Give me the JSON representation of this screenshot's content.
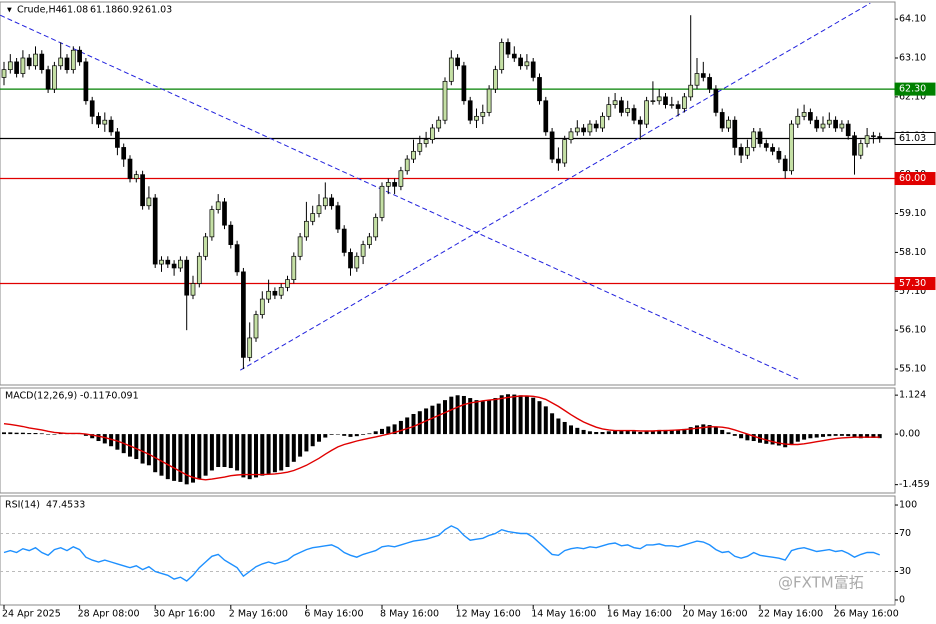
{
  "chart_data": {
    "type": "candlestick",
    "title": "Crude,H4",
    "watermark": "@FXTM富拓",
    "bull_color": "#c5e0a5",
    "bear_color": "#000000",
    "open": [
      62.6,
      62.8,
      63.0,
      62.7,
      63.1,
      62.9,
      63.2,
      62.8,
      62.3,
      62.9,
      63.1,
      62.8,
      63.3,
      63.0,
      62.0,
      61.6,
      61.4,
      61.5,
      61.2,
      60.8,
      60.5,
      60.0,
      60.1,
      59.3,
      59.5,
      57.8,
      57.9,
      57.8,
      57.7,
      57.9,
      57.0,
      57.3,
      58.0,
      58.5,
      59.2,
      59.4,
      58.8,
      58.3,
      57.6,
      55.4,
      55.9,
      56.5,
      56.9,
      57.1,
      57.0,
      57.2,
      57.4,
      58.0,
      58.5,
      58.9,
      59.1,
      59.3,
      59.5,
      59.3,
      58.7,
      58.1,
      57.7,
      58.0,
      58.3,
      58.5,
      59.0,
      59.8,
      59.9,
      59.8,
      60.2,
      60.5,
      60.7,
      60.9,
      61.0,
      61.3,
      61.5,
      62.5,
      63.1,
      62.9,
      62.0,
      61.5,
      61.6,
      61.7,
      62.3,
      62.8,
      63.5,
      63.2,
      63.1,
      62.9,
      63.0,
      62.6,
      62.0,
      61.2,
      60.5,
      60.4,
      61.0,
      61.2,
      61.3,
      61.2,
      61.4,
      61.3,
      61.6,
      61.9,
      62.0,
      61.7,
      61.8,
      61.5,
      61.4,
      62.0,
      62.0,
      62.1,
      61.9,
      61.9,
      61.8,
      62.1,
      62.4,
      62.7,
      62.6,
      62.3,
      61.7,
      61.3,
      61.5,
      60.8,
      60.6,
      60.8,
      61.2,
      60.9,
      60.8,
      60.7,
      60.5,
      60.2,
      61.4,
      61.6,
      61.7,
      61.5,
      61.3,
      61.4,
      61.5,
      61.3,
      61.4,
      61.1,
      60.6,
      60.9,
      61.1,
      61.08
    ],
    "high": [
      63.0,
      63.2,
      63.1,
      63.3,
      63.2,
      63.4,
      63.3,
      62.9,
      63.0,
      63.5,
      63.2,
      63.4,
      63.4,
      63.1,
      62.1,
      61.7,
      61.7,
      61.6,
      61.3,
      60.9,
      60.6,
      60.2,
      60.2,
      59.8,
      59.6,
      58.0,
      58.0,
      57.9,
      58.0,
      58.0,
      57.5,
      58.1,
      58.6,
      59.3,
      59.6,
      59.5,
      58.9,
      58.4,
      57.7,
      56.3,
      56.6,
      57.1,
      57.4,
      57.2,
      57.3,
      57.5,
      58.1,
      58.6,
      59.4,
      59.3,
      59.6,
      59.9,
      59.6,
      59.4,
      58.8,
      58.2,
      58.1,
      58.4,
      58.6,
      59.1,
      59.9,
      60.0,
      60.0,
      60.3,
      60.6,
      61.0,
      61.1,
      61.2,
      61.4,
      61.6,
      62.6,
      63.3,
      63.2,
      63.0,
      62.1,
      61.8,
      61.9,
      62.4,
      62.9,
      63.6,
      63.6,
      63.4,
      63.2,
      63.2,
      63.1,
      62.7,
      62.1,
      61.3,
      60.8,
      61.1,
      61.3,
      61.5,
      61.4,
      61.5,
      61.5,
      61.7,
      62.1,
      62.2,
      62.1,
      62.0,
      61.9,
      61.6,
      62.1,
      62.5,
      62.3,
      62.2,
      62.1,
      62.0,
      62.2,
      64.2,
      63.1,
      63.0,
      62.7,
      62.4,
      61.8,
      61.6,
      61.6,
      60.9,
      61.0,
      61.3,
      61.3,
      61.0,
      60.9,
      60.8,
      60.6,
      61.5,
      61.8,
      61.9,
      61.8,
      61.6,
      61.6,
      61.7,
      61.6,
      61.5,
      61.5,
      61.2,
      61.0,
      61.3,
      61.2,
      61.18
    ],
    "low": [
      62.4,
      62.7,
      62.6,
      62.6,
      62.8,
      62.8,
      62.7,
      62.2,
      62.2,
      62.8,
      62.7,
      62.7,
      62.9,
      61.9,
      61.4,
      61.3,
      61.2,
      61.1,
      60.6,
      60.3,
      59.9,
      59.9,
      59.2,
      59.2,
      57.7,
      57.6,
      57.7,
      57.5,
      57.6,
      56.1,
      56.9,
      57.2,
      57.9,
      58.4,
      59.1,
      58.7,
      58.2,
      57.5,
      55.1,
      55.3,
      55.8,
      56.4,
      56.8,
      56.9,
      56.9,
      57.1,
      57.3,
      57.9,
      58.4,
      58.8,
      59.0,
      59.2,
      59.2,
      58.6,
      58.0,
      57.5,
      57.6,
      57.8,
      58.2,
      58.4,
      58.9,
      59.6,
      59.6,
      59.7,
      60.1,
      60.4,
      60.6,
      60.8,
      60.9,
      61.2,
      61.4,
      62.4,
      62.8,
      61.9,
      61.4,
      61.3,
      61.4,
      61.6,
      62.2,
      62.7,
      63.1,
      63.0,
      62.8,
      62.8,
      62.5,
      61.9,
      61.1,
      60.4,
      60.2,
      60.3,
      60.9,
      61.1,
      61.1,
      61.1,
      61.2,
      61.2,
      61.5,
      61.8,
      61.6,
      61.6,
      61.4,
      61.0,
      61.3,
      61.9,
      61.9,
      61.8,
      61.8,
      61.6,
      61.7,
      62.0,
      62.3,
      62.5,
      62.2,
      61.6,
      61.2,
      61.2,
      60.6,
      60.4,
      60.5,
      60.7,
      60.8,
      60.7,
      60.6,
      60.4,
      60.0,
      60.1,
      61.3,
      61.5,
      61.4,
      61.2,
      61.2,
      61.3,
      61.2,
      61.2,
      61.0,
      60.1,
      60.5,
      60.8,
      60.9,
      60.92
    ],
    "close": [
      62.8,
      63.0,
      62.7,
      63.1,
      62.9,
      63.2,
      62.8,
      62.3,
      62.9,
      63.1,
      62.8,
      63.3,
      63.0,
      62.0,
      61.6,
      61.4,
      61.5,
      61.2,
      60.8,
      60.5,
      60.0,
      60.1,
      59.3,
      59.5,
      57.8,
      57.9,
      57.8,
      57.7,
      57.9,
      57.0,
      57.3,
      58.0,
      58.5,
      59.2,
      59.4,
      58.8,
      58.3,
      57.6,
      55.4,
      55.9,
      56.5,
      56.9,
      57.1,
      57.0,
      57.2,
      57.4,
      58.0,
      58.5,
      58.9,
      59.1,
      59.3,
      59.5,
      59.3,
      58.7,
      58.1,
      57.7,
      58.0,
      58.3,
      58.5,
      59.0,
      59.8,
      59.9,
      59.8,
      60.2,
      60.5,
      60.7,
      60.9,
      61.0,
      61.3,
      61.5,
      62.5,
      63.1,
      62.9,
      62.0,
      61.5,
      61.6,
      61.7,
      62.3,
      62.8,
      63.5,
      63.2,
      63.1,
      62.9,
      63.0,
      62.6,
      62.0,
      61.2,
      60.5,
      60.4,
      61.0,
      61.2,
      61.3,
      61.2,
      61.4,
      61.3,
      61.6,
      61.9,
      62.0,
      61.7,
      61.8,
      61.5,
      61.4,
      62.0,
      62.0,
      62.1,
      61.9,
      61.9,
      61.8,
      62.1,
      62.4,
      62.7,
      62.6,
      62.3,
      61.7,
      61.3,
      61.5,
      60.8,
      60.6,
      60.8,
      61.2,
      60.9,
      60.8,
      60.7,
      60.5,
      60.2,
      61.4,
      61.6,
      61.7,
      61.5,
      61.3,
      61.4,
      61.5,
      61.3,
      61.4,
      61.1,
      60.6,
      60.9,
      61.1,
      61.08,
      61.03
    ],
    "ylim": [
      54.69,
      64.54
    ],
    "yticks": [
      {
        "value": 55.1,
        "label": "55.10"
      },
      {
        "value": 56.1,
        "label": "56.10"
      },
      {
        "value": 57.1,
        "label": "57.10"
      },
      {
        "value": 58.1,
        "label": "58.10"
      },
      {
        "value": 59.1,
        "label": "59.10"
      },
      {
        "value": 60.1,
        "label": "60.10"
      },
      {
        "value": 61.1,
        "label": "61.10"
      },
      {
        "value": 62.1,
        "label": "62.10"
      },
      {
        "value": 63.1,
        "label": "63.10"
      },
      {
        "value": 64.1,
        "label": "64.10"
      }
    ],
    "levels": [
      {
        "value": 62.3,
        "label": "62.30",
        "color": "#008000"
      },
      {
        "value": 61.03,
        "label": "61.03",
        "color": "#000000"
      },
      {
        "value": 60.0,
        "label": "60.00",
        "color": "#e00000"
      },
      {
        "value": 57.3,
        "label": "57.30",
        "color": "#e00000"
      }
    ],
    "trendlines": [
      {
        "color": "#2222dd",
        "points": [
          [
            -0.6,
            64.2
          ],
          [
            126.3,
            54.82
          ]
        ]
      },
      {
        "color": "#2222dd",
        "points": [
          [
            37.5,
            55.07
          ],
          [
            137.5,
            64.51
          ]
        ]
      }
    ],
    "xticks": [
      {
        "value": 0,
        "label": "24 Apr 2025"
      },
      {
        "value": 12,
        "label": "28 Apr 08:00"
      },
      {
        "value": 24,
        "label": "30 Apr 16:00"
      },
      {
        "value": 36,
        "label": "2 May 16:00"
      },
      {
        "value": 48,
        "label": "6 May 16:00"
      },
      {
        "value": 60,
        "label": "8 May 16:00"
      },
      {
        "value": 72,
        "label": "12 May 16:00"
      },
      {
        "value": 84,
        "label": "14 May 16:00"
      },
      {
        "value": 96,
        "label": "16 May 16:00"
      },
      {
        "value": 108,
        "label": "20 May 16:00"
      },
      {
        "value": 120,
        "label": "22 May 16:00"
      },
      {
        "value": 132,
        "label": "26 May 16:00"
      }
    ],
    "macd": {
      "name": "MACD(12,26,9)",
      "hist_color": "#000000",
      "signal_color": "#e00000",
      "hist": [
        0.05,
        0.05,
        0.04,
        0.04,
        0.03,
        0.03,
        0.02,
        0.0,
        0.0,
        0.02,
        0.02,
        0.03,
        0.02,
        -0.05,
        -0.12,
        -0.2,
        -0.27,
        -0.35,
        -0.45,
        -0.55,
        -0.65,
        -0.72,
        -0.85,
        -0.9,
        -1.1,
        -1.2,
        -1.3,
        -1.35,
        -1.38,
        -1.45,
        -1.4,
        -1.3,
        -1.2,
        -1.05,
        -0.95,
        -0.95,
        -0.98,
        -1.05,
        -1.25,
        -1.3,
        -1.25,
        -1.2,
        -1.15,
        -1.1,
        -1.05,
        -0.95,
        -0.8,
        -0.65,
        -0.5,
        -0.35,
        -0.22,
        -0.1,
        -0.02,
        0.0,
        -0.05,
        -0.08,
        -0.06,
        -0.02,
        0.02,
        0.08,
        0.15,
        0.22,
        0.28,
        0.38,
        0.48,
        0.58,
        0.66,
        0.74,
        0.82,
        0.88,
        0.98,
        1.08,
        1.12,
        1.1,
        1.04,
        0.98,
        0.95,
        0.98,
        1.04,
        1.12,
        1.15,
        1.14,
        1.12,
        1.1,
        1.05,
        0.95,
        0.8,
        0.6,
        0.45,
        0.35,
        0.25,
        0.18,
        0.12,
        0.08,
        0.06,
        0.06,
        0.08,
        0.1,
        0.1,
        0.1,
        0.08,
        0.06,
        0.08,
        0.1,
        0.12,
        0.12,
        0.12,
        0.12,
        0.15,
        0.2,
        0.25,
        0.28,
        0.26,
        0.2,
        0.12,
        0.05,
        -0.05,
        -0.12,
        -0.18,
        -0.2,
        -0.25,
        -0.28,
        -0.3,
        -0.33,
        -0.38,
        -0.3,
        -0.22,
        -0.16,
        -0.12,
        -0.1,
        -0.08,
        -0.06,
        -0.05,
        -0.05,
        -0.06,
        -0.1,
        -0.12,
        -0.11,
        -0.11,
        -0.117
      ],
      "signal": [
        0.3,
        0.28,
        0.25,
        0.22,
        0.18,
        0.15,
        0.12,
        0.08,
        0.05,
        0.03,
        0.02,
        0.02,
        0.02,
        0.0,
        -0.03,
        -0.06,
        -0.1,
        -0.15,
        -0.2,
        -0.27,
        -0.34,
        -0.42,
        -0.5,
        -0.58,
        -0.68,
        -0.78,
        -0.88,
        -0.98,
        -1.08,
        -1.18,
        -1.25,
        -1.3,
        -1.32,
        -1.3,
        -1.27,
        -1.24,
        -1.2,
        -1.18,
        -1.17,
        -1.17,
        -1.17,
        -1.17,
        -1.16,
        -1.15,
        -1.13,
        -1.1,
        -1.05,
        -0.98,
        -0.9,
        -0.8,
        -0.7,
        -0.58,
        -0.47,
        -0.37,
        -0.3,
        -0.25,
        -0.2,
        -0.16,
        -0.12,
        -0.08,
        -0.04,
        0.0,
        0.05,
        0.1,
        0.16,
        0.22,
        0.3,
        0.38,
        0.46,
        0.54,
        0.62,
        0.7,
        0.78,
        0.85,
        0.9,
        0.93,
        0.96,
        0.98,
        1.0,
        1.03,
        1.06,
        1.08,
        1.1,
        1.1,
        1.09,
        1.06,
        1.0,
        0.9,
        0.8,
        0.68,
        0.56,
        0.45,
        0.35,
        0.27,
        0.2,
        0.15,
        0.12,
        0.1,
        0.1,
        0.1,
        0.1,
        0.09,
        0.09,
        0.09,
        0.1,
        0.1,
        0.11,
        0.12,
        0.13,
        0.15,
        0.17,
        0.19,
        0.21,
        0.21,
        0.2,
        0.17,
        0.12,
        0.06,
        0.0,
        -0.06,
        -0.12,
        -0.17,
        -0.22,
        -0.26,
        -0.29,
        -0.3,
        -0.3,
        -0.28,
        -0.25,
        -0.22,
        -0.19,
        -0.16,
        -0.13,
        -0.11,
        -0.1,
        -0.09,
        -0.09,
        -0.09,
        -0.09,
        -0.091
      ],
      "ylim": [
        -1.7,
        1.33
      ],
      "yticks": [
        1.124,
        {
          "value": 0,
          "label": "0.00"
        },
        -1.459
      ]
    },
    "rsi": {
      "name": "RSI(14)",
      "color": "#1e90ff",
      "values": [
        50,
        52,
        50,
        54,
        52,
        55,
        50,
        47,
        53,
        55,
        52,
        56,
        53,
        45,
        42,
        40,
        42,
        40,
        38,
        36,
        34,
        36,
        32,
        35,
        30,
        28,
        26,
        22,
        24,
        20,
        26,
        34,
        40,
        46,
        48,
        42,
        38,
        34,
        25,
        30,
        35,
        38,
        40,
        38,
        40,
        42,
        47,
        50,
        53,
        55,
        56,
        57,
        58,
        55,
        50,
        47,
        45,
        48,
        50,
        52,
        56,
        57,
        56,
        58,
        60,
        62,
        63,
        64,
        66,
        68,
        74,
        78,
        75,
        68,
        63,
        64,
        65,
        68,
        70,
        74,
        72,
        71,
        70,
        70,
        66,
        60,
        54,
        48,
        47,
        52,
        54,
        55,
        54,
        56,
        55,
        57,
        59,
        60,
        57,
        58,
        55,
        54,
        58,
        58,
        59,
        57,
        57,
        56,
        58,
        60,
        62,
        61,
        58,
        53,
        50,
        51,
        46,
        44,
        46,
        50,
        47,
        46,
        45,
        44,
        42,
        52,
        54,
        55,
        53,
        51,
        52,
        53,
        51,
        52,
        49,
        45,
        48,
        50,
        50,
        47.4533
      ],
      "ylim": [
        -5.3,
        109.5
      ],
      "yticks": [
        100,
        70,
        30,
        0
      ],
      "levels": [
        70,
        30
      ]
    }
  }
}
